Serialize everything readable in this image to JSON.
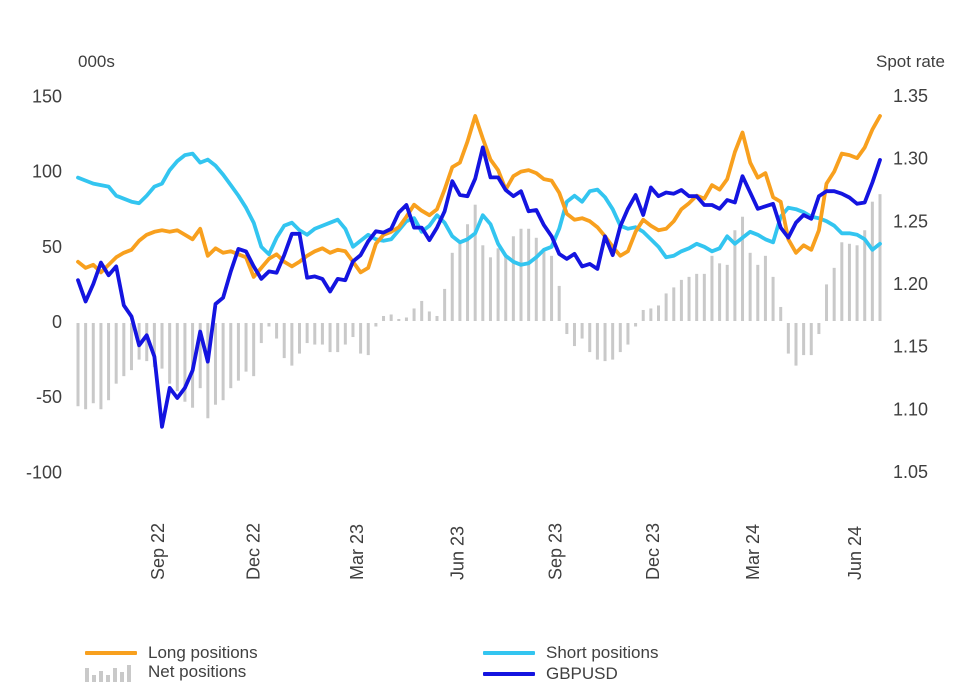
{
  "chart_data": {
    "type": "combo",
    "title": "",
    "x_tick_labels": [
      "Sep 22",
      "Dec 22",
      "Mar 23",
      "Jun 23",
      "Sep 23",
      "Dec 23",
      "Mar 24",
      "Jun 24"
    ],
    "x_tick_week_indices": [
      10.5,
      23.0,
      36.5,
      49.7,
      62.5,
      75.3,
      88.4,
      101.7
    ],
    "left_axis": {
      "title": "000s",
      "tick_values": [
        150,
        100,
        50,
        0,
        -50,
        -100
      ],
      "range": [
        -100,
        150
      ]
    },
    "right_axis": {
      "title": "Spot rate",
      "tick_labels": [
        "1.35",
        "1.30",
        "1.25",
        "1.20",
        "1.15",
        "1.10",
        "1.05"
      ],
      "range": [
        1.05,
        1.35
      ]
    },
    "grid": false,
    "legend_position": "bottom",
    "series": [
      {
        "name": "Long positions",
        "type": "line",
        "axis": "left",
        "color": "#F8A01E",
        "values": [
          40,
          36,
          38,
          33,
          38,
          43,
          46,
          48,
          54,
          58,
          60,
          61,
          60,
          61,
          58,
          55,
          62,
          44,
          49,
          46,
          47,
          45,
          43,
          30,
          36,
          42,
          45,
          40,
          37,
          40,
          44,
          47,
          49,
          46,
          48,
          47,
          40,
          33,
          36,
          52,
          58,
          60,
          63,
          70,
          78,
          74,
          71,
          75,
          88,
          103,
          106,
          120,
          137,
          122,
          108,
          101,
          88,
          97,
          100,
          101,
          99,
          95,
          94,
          86,
          72,
          68,
          69,
          67,
          63,
          57,
          50,
          44,
          47,
          60,
          68,
          64,
          61,
          62,
          67,
          75,
          79,
          84,
          82,
          91,
          88,
          95,
          113,
          126,
          106,
          96,
          99,
          83,
          80,
          55,
          46,
          51,
          48,
          61,
          92,
          100,
          112,
          111,
          109,
          116,
          128,
          137
        ]
      },
      {
        "name": "Short positions",
        "type": "line",
        "axis": "left",
        "color": "#33C5F0",
        "values": [
          96,
          94,
          92,
          91,
          90,
          84,
          82,
          80,
          79,
          84,
          90,
          92,
          101,
          107,
          111,
          112,
          106,
          108,
          104,
          98,
          91,
          84,
          76,
          66,
          50,
          45,
          56,
          64,
          66,
          61,
          58,
          62,
          64,
          66,
          68,
          62,
          50,
          54,
          58,
          55,
          54,
          55,
          61,
          67,
          69,
          60,
          64,
          71,
          66,
          57,
          53,
          55,
          59,
          71,
          65,
          52,
          44,
          40,
          38,
          39,
          43,
          48,
          50,
          62,
          80,
          84,
          80,
          87,
          88,
          83,
          75,
          64,
          62,
          63,
          60,
          55,
          50,
          43,
          44,
          47,
          49,
          52,
          50,
          47,
          49,
          57,
          52,
          56,
          60,
          58,
          55,
          53,
          70,
          76,
          75,
          73,
          70,
          69,
          67,
          64,
          59,
          59,
          58,
          55,
          48,
          52
        ]
      },
      {
        "name": "Net positions",
        "type": "bar",
        "axis": "left",
        "color": "#C9C9C9",
        "values": [
          -56,
          -58,
          -54,
          -58,
          -52,
          -41,
          -36,
          -32,
          -25,
          -26,
          -30,
          -31,
          -41,
          -46,
          -53,
          -57,
          -44,
          -64,
          -55,
          -52,
          -44,
          -39,
          -33,
          -36,
          -14,
          -3,
          -11,
          -24,
          -29,
          -21,
          -14,
          -15,
          -15,
          -20,
          -20,
          -15,
          -10,
          -21,
          -22,
          -3,
          4,
          5,
          2,
          3,
          9,
          14,
          7,
          4,
          22,
          46,
          53,
          65,
          78,
          51,
          43,
          49,
          44,
          57,
          62,
          62,
          56,
          47,
          44,
          24,
          -8,
          -16,
          -11,
          -20,
          -25,
          -26,
          -25,
          -20,
          -15,
          -3,
          8,
          9,
          11,
          19,
          23,
          28,
          30,
          32,
          32,
          44,
          39,
          38,
          61,
          70,
          46,
          38,
          44,
          30,
          10,
          -21,
          -29,
          -22,
          -22,
          -8,
          25,
          36,
          53,
          52,
          51,
          61,
          80,
          85
        ]
      },
      {
        "name": "GBPUSD",
        "type": "line",
        "axis": "right",
        "color": "#1414E0",
        "values": [
          1.203,
          1.186,
          1.2,
          1.217,
          1.207,
          1.214,
          1.183,
          1.174,
          1.151,
          1.159,
          1.142,
          1.086,
          1.117,
          1.109,
          1.117,
          1.131,
          1.162,
          1.138,
          1.184,
          1.189,
          1.21,
          1.228,
          1.226,
          1.214,
          1.204,
          1.21,
          1.209,
          1.223,
          1.24,
          1.24,
          1.205,
          1.206,
          1.204,
          1.194,
          1.204,
          1.203,
          1.218,
          1.223,
          1.234,
          1.242,
          1.241,
          1.244,
          1.257,
          1.263,
          1.245,
          1.245,
          1.235,
          1.245,
          1.258,
          1.282,
          1.271,
          1.27,
          1.284,
          1.309,
          1.285,
          1.285,
          1.275,
          1.27,
          1.274,
          1.258,
          1.259,
          1.247,
          1.238,
          1.224,
          1.22,
          1.224,
          1.214,
          1.216,
          1.212,
          1.238,
          1.223,
          1.246,
          1.26,
          1.271,
          1.255,
          1.277,
          1.27,
          1.273,
          1.272,
          1.275,
          1.27,
          1.27,
          1.263,
          1.263,
          1.26,
          1.267,
          1.265,
          1.286,
          1.273,
          1.26,
          1.262,
          1.264,
          1.245,
          1.237,
          1.249,
          1.255,
          1.252,
          1.27,
          1.274,
          1.274,
          1.272,
          1.269,
          1.264,
          1.265,
          1.281,
          1.299
        ]
      }
    ]
  },
  "colors": {
    "text": "#3F3F3F",
    "legend_text": "#404040",
    "background": "#ffffff"
  }
}
